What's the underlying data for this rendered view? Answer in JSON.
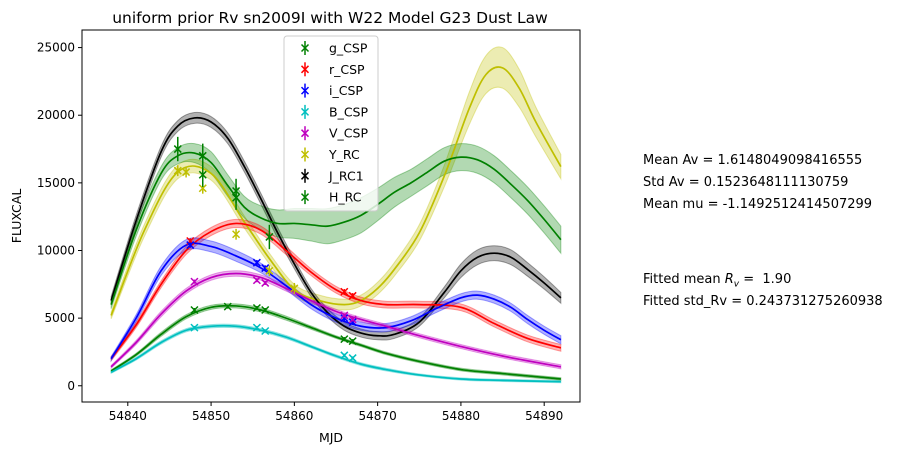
{
  "chart_data": {
    "type": "line",
    "title": "uniform prior Rv sn2009I with W22 Model G23 Dust Law",
    "xlabel": "MJD",
    "ylabel": "FLUXCAL",
    "xlim": [
      54834.5,
      54894.3
    ],
    "ylim": [
      -1200,
      26300
    ],
    "xticks": [
      54840,
      54850,
      54860,
      54870,
      54880,
      54890
    ],
    "yticks": [
      0,
      5000,
      10000,
      15000,
      20000,
      25000
    ],
    "legend_position": "upper-center",
    "grid": false,
    "legend": [
      {
        "label": "g_CSP",
        "color": "#008000"
      },
      {
        "label": "r_CSP",
        "color": "#ff0000"
      },
      {
        "label": "i_CSP",
        "color": "#0000ff"
      },
      {
        "label": "B_CSP",
        "color": "#00bfbf"
      },
      {
        "label": "V_CSP",
        "color": "#bf00bf"
      },
      {
        "label": "Y_RC",
        "color": "#bfbf00"
      },
      {
        "label": "J_RC1",
        "color": "#000000"
      },
      {
        "label": "H_RC",
        "color": "#008000"
      }
    ],
    "models": [
      {
        "band": "Y_RC",
        "color": "#bfbf00",
        "x": [
          54838,
          54842,
          54846,
          54850,
          54854,
          54857,
          54860,
          54863,
          54866,
          54868,
          54870,
          54872,
          54875,
          54878,
          54881,
          54883,
          54885,
          54887,
          54889,
          54892
        ],
        "y": [
          5200,
          11500,
          15800,
          15700,
          12100,
          9400,
          7100,
          6300,
          6000,
          6300,
          7200,
          8600,
          11300,
          15500,
          20500,
          23000,
          23500,
          22000,
          19500,
          16200
        ],
        "band_halfwidth": [
          250,
          450,
          500,
          500,
          450,
          400,
          400,
          400,
          400,
          400,
          450,
          500,
          600,
          800,
          1200,
          1400,
          1500,
          1400,
          1100,
          900
        ]
      },
      {
        "band": "J_RC1",
        "color": "#000000",
        "x": [
          54838,
          54841,
          54844,
          54846,
          54848,
          54850,
          54852,
          54854,
          54856,
          54858,
          54860,
          54862,
          54864,
          54866,
          54868,
          54870,
          54872,
          54875,
          54878,
          54880,
          54882,
          54884,
          54886,
          54888,
          54890,
          54892
        ],
        "y": [
          6300,
          12200,
          17300,
          19200,
          19800,
          19500,
          18300,
          16200,
          13800,
          11300,
          9000,
          6900,
          5400,
          4400,
          3900,
          3700,
          3800,
          4700,
          6900,
          8500,
          9500,
          9800,
          9500,
          8600,
          7600,
          6500
        ],
        "band_halfwidth": [
          300,
          400,
          400,
          400,
          400,
          400,
          400,
          400,
          400,
          400,
          350,
          300,
          300,
          300,
          300,
          300,
          300,
          300,
          400,
          500,
          550,
          550,
          550,
          500,
          450,
          400
        ]
      },
      {
        "band": "H_RC",
        "color": "#008000",
        "x": [
          54838,
          54841,
          54844,
          54846,
          54848,
          54850,
          54852,
          54854,
          54856,
          54858,
          54860,
          54862,
          54864,
          54866,
          54868,
          54870,
          54872,
          54874,
          54876,
          54878,
          54880,
          54882,
          54884,
          54886,
          54888,
          54890,
          54892
        ],
        "y": [
          6000,
          11500,
          15700,
          17000,
          17200,
          16500,
          14800,
          13200,
          12400,
          12000,
          12000,
          11900,
          11800,
          12100,
          12600,
          13400,
          14300,
          15000,
          15800,
          16600,
          16900,
          16700,
          16000,
          14900,
          13700,
          12300,
          10800
        ],
        "band_halfwidth": [
          300,
          450,
          500,
          600,
          700,
          800,
          800,
          800,
          900,
          1000,
          1100,
          1200,
          1300,
          1300,
          1300,
          1200,
          1100,
          1000,
          1000,
          1000,
          1000,
          1000,
          1000,
          1000,
          1000,
          1000,
          1000
        ]
      },
      {
        "band": "r_CSP",
        "color": "#ff0000",
        "x": [
          54838,
          54841,
          54844,
          54847,
          54850,
          54853,
          54856,
          54859,
          54862,
          54865,
          54868,
          54871,
          54875,
          54880,
          54884,
          54888,
          54892
        ],
        "y": [
          2000,
          4500,
          7500,
          10000,
          11400,
          12000,
          11500,
          10000,
          8400,
          7100,
          6300,
          6000,
          6000,
          5800,
          4600,
          3500,
          2800
        ],
        "band_halfwidth": [
          150,
          200,
          250,
          300,
          300,
          300,
          300,
          300,
          250,
          250,
          250,
          250,
          250,
          250,
          250,
          250,
          250
        ]
      },
      {
        "band": "i_CSP",
        "color": "#0000ff",
        "x": [
          54838,
          54841,
          54844,
          54847,
          54850,
          54853,
          54856,
          54859,
          54862,
          54865,
          54868,
          54871,
          54874,
          54877,
          54880,
          54882,
          54884,
          54886,
          54888,
          54890,
          54892
        ],
        "y": [
          2000,
          5000,
          8500,
          10400,
          10300,
          9600,
          8700,
          7400,
          6000,
          5000,
          4400,
          4300,
          4800,
          5700,
          6500,
          6700,
          6400,
          5800,
          4900,
          4100,
          3400
        ],
        "band_halfwidth": [
          150,
          250,
          350,
          400,
          400,
          400,
          350,
          300,
          300,
          300,
          300,
          300,
          300,
          300,
          300,
          300,
          300,
          300,
          300,
          300,
          300
        ]
      },
      {
        "band": "V_CSP",
        "color": "#bf00bf",
        "x": [
          54838,
          54841,
          54844,
          54847,
          54850,
          54853,
          54856,
          54859,
          54862,
          54865,
          54868,
          54871,
          54875,
          54880,
          54885,
          54892
        ],
        "y": [
          1400,
          3200,
          5300,
          7000,
          8000,
          8300,
          8000,
          7200,
          6300,
          5500,
          4900,
          4400,
          3700,
          2900,
          2200,
          1400
        ],
        "band_halfwidth": [
          100,
          150,
          200,
          200,
          200,
          200,
          200,
          200,
          150,
          150,
          150,
          150,
          150,
          150,
          150,
          150
        ]
      },
      {
        "band": "g_CSP",
        "color": "#008000",
        "x": [
          54838,
          54841,
          54844,
          54847,
          54850,
          54853,
          54856,
          54859,
          54862,
          54865,
          54868,
          54871,
          54875,
          54880,
          54885,
          54892
        ],
        "y": [
          1100,
          2300,
          3800,
          5100,
          5800,
          5900,
          5600,
          5000,
          4300,
          3600,
          3000,
          2400,
          1800,
          1200,
          900,
          500
        ],
        "band_halfwidth": [
          80,
          100,
          150,
          150,
          150,
          150,
          150,
          150,
          120,
          100,
          100,
          100,
          100,
          100,
          100,
          100
        ]
      },
      {
        "band": "B_CSP",
        "color": "#00bfbf",
        "x": [
          54838,
          54841,
          54844,
          54847,
          54850,
          54853,
          54856,
          54859,
          54862,
          54865,
          54868,
          54871,
          54875,
          54880,
          54885,
          54892
        ],
        "y": [
          1000,
          2000,
          3200,
          4100,
          4400,
          4400,
          4100,
          3600,
          2900,
          2200,
          1600,
          1200,
          800,
          500,
          400,
          300
        ],
        "band_halfwidth": [
          80,
          100,
          120,
          120,
          120,
          120,
          120,
          120,
          100,
          100,
          100,
          100,
          80,
          80,
          80,
          80
        ]
      }
    ],
    "observations": [
      {
        "band": "g_CSP",
        "color": "#008000",
        "points": [
          [
            54848,
            5600
          ],
          [
            54852,
            5850
          ],
          [
            54855.5,
            5750
          ],
          [
            54856.5,
            5600
          ],
          [
            54866,
            3450
          ],
          [
            54867,
            3300
          ]
        ],
        "yerr": 150
      },
      {
        "band": "r_CSP",
        "color": "#ff0000",
        "points": [
          [
            54847.5,
            10700
          ],
          [
            54866,
            6950
          ],
          [
            54867,
            6650
          ]
        ],
        "yerr": 200
      },
      {
        "band": "i_CSP",
        "color": "#0000ff",
        "points": [
          [
            54847.5,
            10400
          ],
          [
            54855.5,
            9100
          ],
          [
            54856.5,
            8700
          ],
          [
            54866,
            5000
          ],
          [
            54867,
            4700
          ]
        ],
        "yerr": 200
      },
      {
        "band": "B_CSP",
        "color": "#00bfbf",
        "points": [
          [
            54848,
            4300
          ],
          [
            54855.5,
            4300
          ],
          [
            54856.5,
            4050
          ],
          [
            54866,
            2250
          ],
          [
            54867,
            2050
          ]
        ],
        "yerr": 120
      },
      {
        "band": "V_CSP",
        "color": "#bf00bf",
        "points": [
          [
            54848,
            7700
          ],
          [
            54855.5,
            7800
          ],
          [
            54856.5,
            7600
          ],
          [
            54866,
            5200
          ],
          [
            54867,
            4900
          ]
        ],
        "yerr": 150
      },
      {
        "band": "Y_RC",
        "color": "#bfbf00",
        "points": [
          [
            54846,
            15900
          ],
          [
            54847,
            15800
          ],
          [
            54849,
            14600
          ],
          [
            54853,
            11200
          ],
          [
            54857,
            8500
          ],
          [
            54860,
            7200
          ]
        ],
        "yerr": 400
      },
      {
        "band": "J_RC1",
        "color": "#000000",
        "points": [],
        "yerr": 400
      },
      {
        "band": "H_RC",
        "color": "#008000",
        "points": [
          [
            54846,
            17500
          ],
          [
            54849,
            17000
          ],
          [
            54849,
            15600
          ],
          [
            54853,
            14400
          ],
          [
            54853,
            13900
          ],
          [
            54857,
            11000
          ]
        ],
        "yerr": 900
      }
    ]
  },
  "stats": {
    "mean_av": "Mean Av = 1.6148049098416555",
    "std_av": "Std Av = 0.1523648111130759",
    "mean_mu": "Mean mu = -1.1492512414507299",
    "fitted_rv_prefix": "Fitted mean ",
    "fitted_rv_symbol": "R",
    "fitted_rv_sub": "v",
    "fitted_rv_suffix": " =  1.90",
    "fitted_std_rv": "Fitted std_Rv = 0.243731275260938"
  }
}
